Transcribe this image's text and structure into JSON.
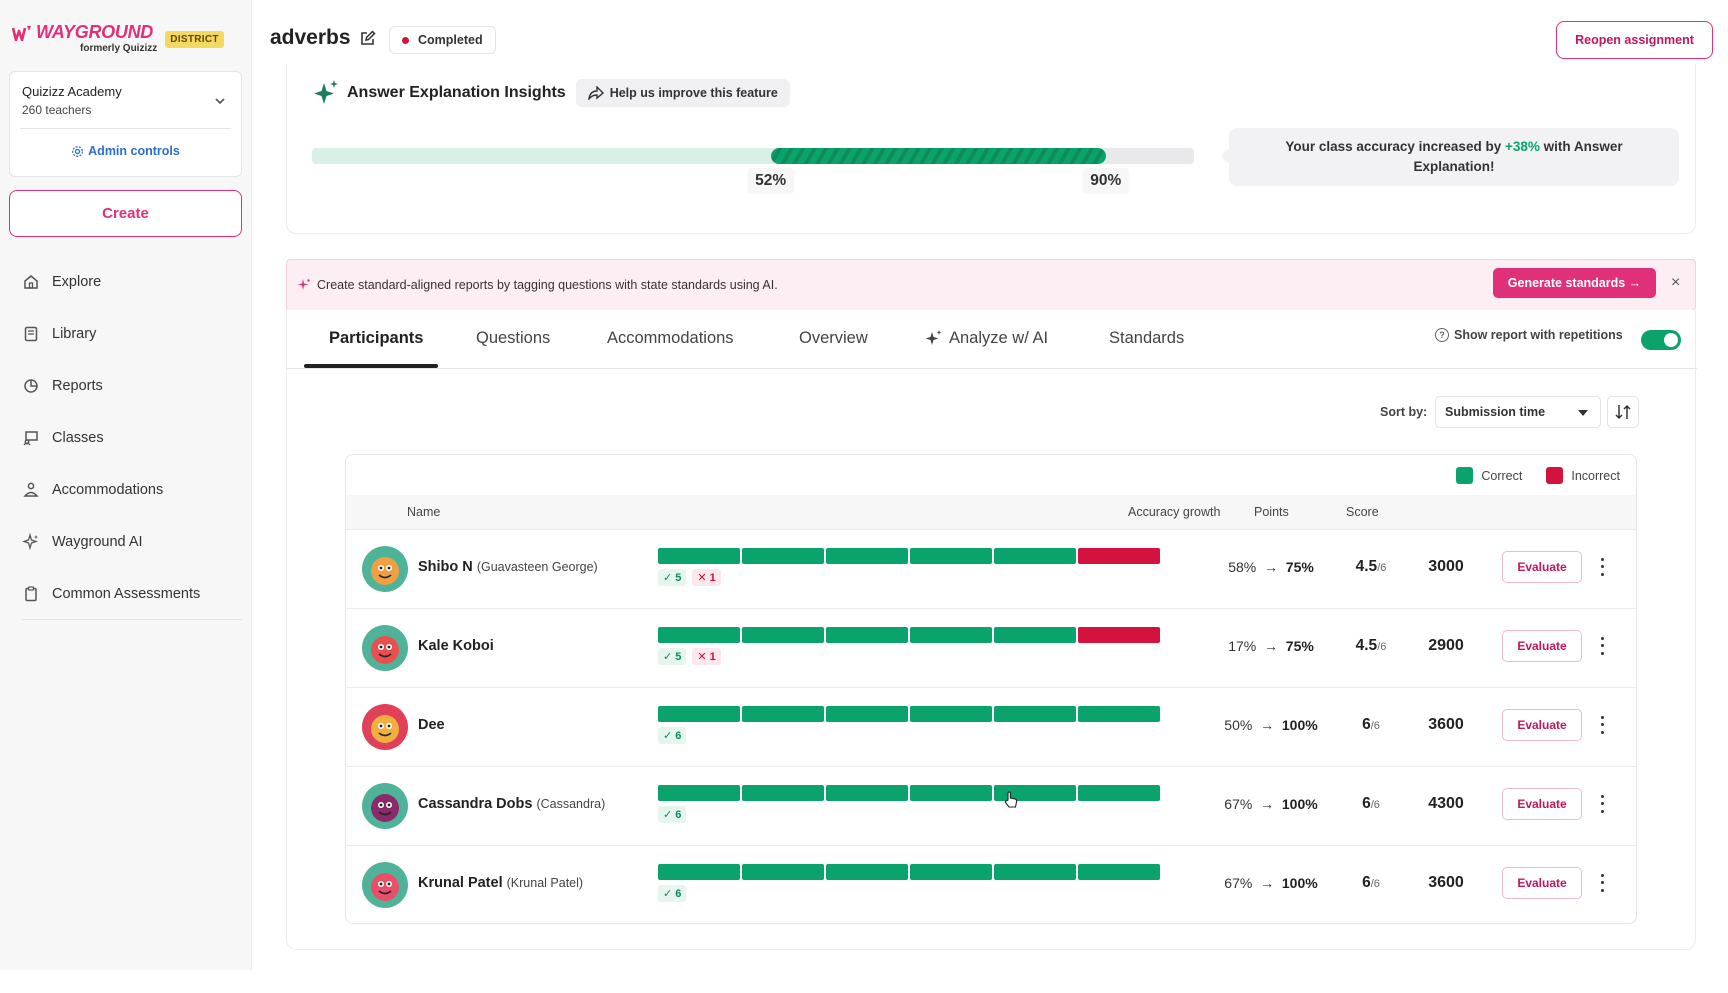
{
  "brand": {
    "logo_text": "WAYGROUND",
    "logo_sub": "formerly Quizizz",
    "badge": "DISTRICT",
    "accent": "#e0307a"
  },
  "sidebar": {
    "org_name": "Quizizz Academy",
    "org_sub": "260 teachers",
    "admin_label": "Admin controls",
    "create_label": "Create",
    "items": [
      {
        "label": "Explore",
        "icon": "home-icon"
      },
      {
        "label": "Library",
        "icon": "book-icon"
      },
      {
        "label": "Reports",
        "icon": "chart-icon"
      },
      {
        "label": "Classes",
        "icon": "board-icon"
      },
      {
        "label": "Accommodations",
        "icon": "person-icon"
      },
      {
        "label": "Wayground AI",
        "icon": "sparkle-icon"
      },
      {
        "label": "Common Assessments",
        "icon": "clipboard-icon"
      }
    ]
  },
  "header": {
    "title": "adverbs",
    "status": "Completed",
    "reopen_label": "Reopen assignment"
  },
  "insights": {
    "title": "Answer Explanation Insights",
    "help_label": "Help us improve this feature",
    "before_pct": 52,
    "after_pct": 90,
    "before_label": "52%",
    "after_label": "90%",
    "msg_prefix": "Your class accuracy increased by",
    "msg_delta": "+38%",
    "msg_suffix": "with Answer",
    "msg_line2": "Explanation!"
  },
  "banner": {
    "text": "Create standard-aligned reports by tagging questions with state standards using AI.",
    "button": "Generate standards →",
    "close": "×"
  },
  "tabs": {
    "participants": "Participants",
    "questions": "Questions",
    "accommodations": "Accommodations",
    "overview": "Overview",
    "analyze": "Analyze w/ AI",
    "standards": "Standards",
    "toggle_label": "Show report with repetitions",
    "toggle_on": true
  },
  "sort": {
    "label": "Sort by:",
    "value": "Submission time"
  },
  "table": {
    "legend_correct": "Correct",
    "legend_incorrect": "Incorrect",
    "correct_color": "#0aa36b",
    "incorrect_color": "#d3123e",
    "col_name": "Name",
    "col_acc": "Accuracy growth",
    "col_points": "Points",
    "col_score": "Score",
    "evaluate_label": "Evaluate",
    "rows": [
      {
        "name": "Shibo N",
        "alias": "(Guavasteen George)",
        "answers": "cccccx",
        "correct_chip": "✓ 5",
        "wrong_chip": "✕ 1",
        "acc_from": "58%",
        "acc_to": "75%",
        "points": "4.5",
        "points_max": "/6",
        "score": "3000"
      },
      {
        "name": "Kale Koboi",
        "alias": "",
        "answers": "cccccx",
        "correct_chip": "✓ 5",
        "wrong_chip": "✕ 1",
        "acc_from": "17%",
        "acc_to": "75%",
        "points": "4.5",
        "points_max": "/6",
        "score": "2900"
      },
      {
        "name": "Dee",
        "alias": "",
        "answers": "cccccc",
        "correct_chip": "✓ 6",
        "wrong_chip": "",
        "acc_from": "50%",
        "acc_to": "100%",
        "points": "6",
        "points_max": "/6",
        "score": "3600"
      },
      {
        "name": "Cassandra Dobs",
        "alias": "(Cassandra)",
        "answers": "cccccc",
        "correct_chip": "✓ 6",
        "wrong_chip": "",
        "acc_from": "67%",
        "acc_to": "100%",
        "points": "6",
        "points_max": "/6",
        "score": "4300"
      },
      {
        "name": "Krunal Patel",
        "alias": "(Krunal Patel)",
        "answers": "cccccc",
        "correct_chip": "✓ 6",
        "wrong_chip": "",
        "acc_from": "67%",
        "acc_to": "100%",
        "points": "6",
        "points_max": "/6",
        "score": "3600"
      }
    ]
  }
}
